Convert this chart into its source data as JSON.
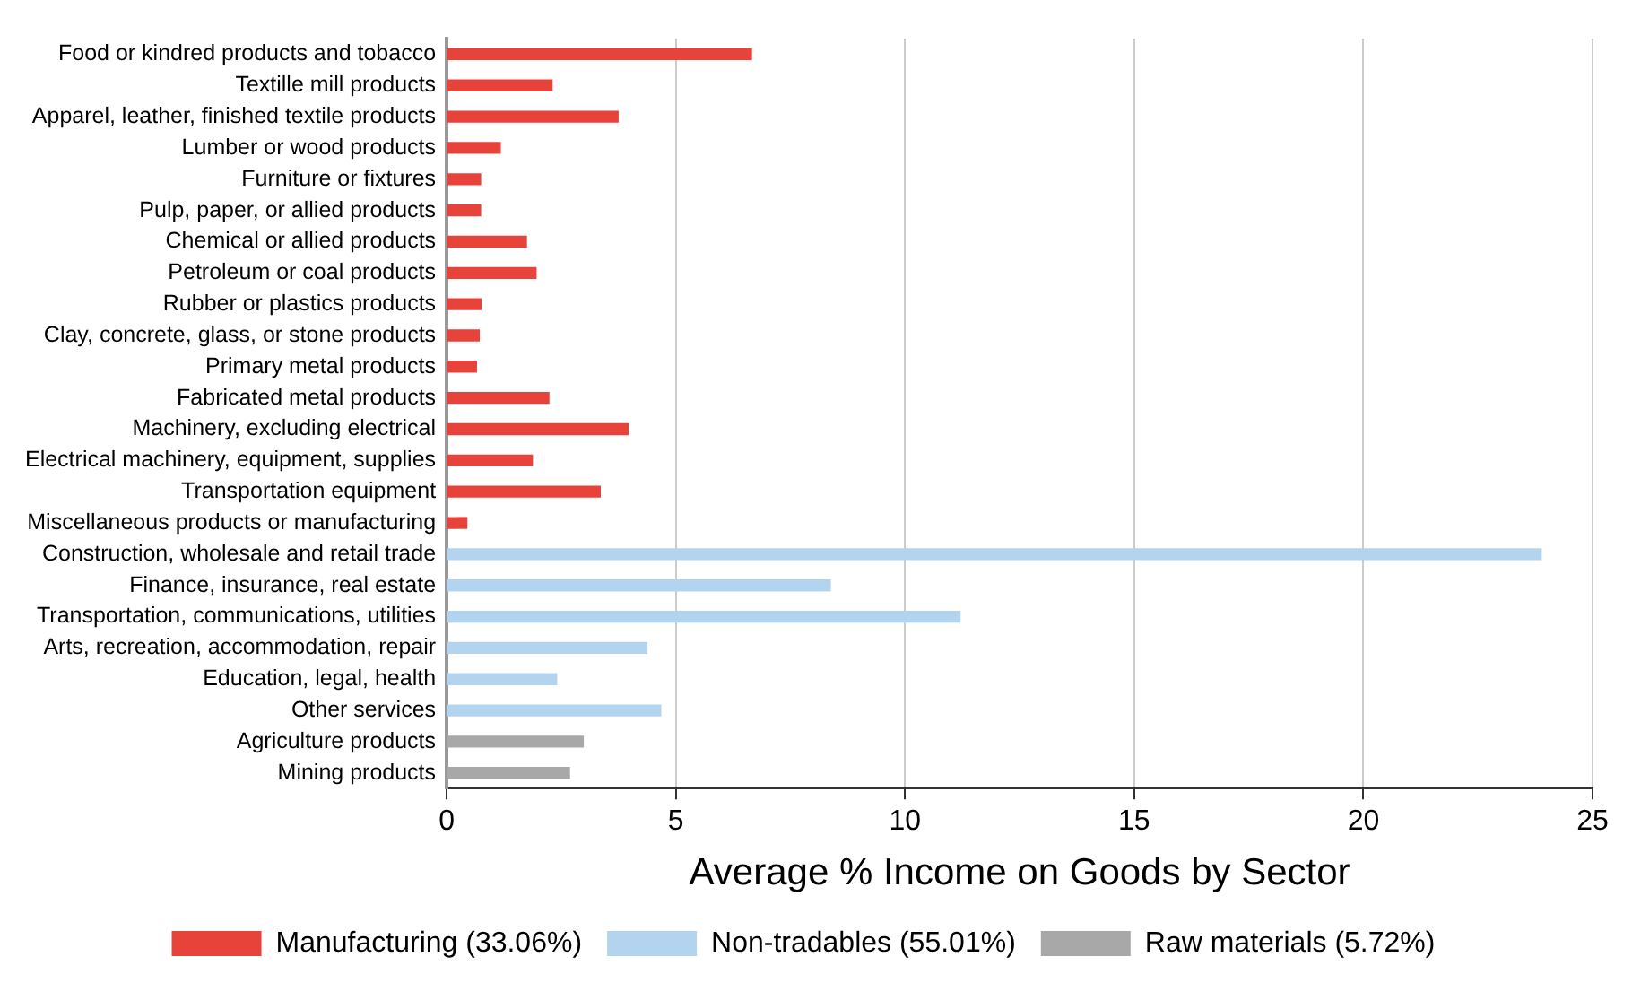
{
  "chart_data": {
    "type": "bar",
    "orientation": "horizontal",
    "xlabel": "Average % Income on Goods by Sector",
    "categories": [
      "Food or kindred products and tobacco",
      "Textille mill products",
      "Apparel, leather, finished textile products",
      "Lumber or wood products",
      "Furniture or fixtures",
      "Pulp, paper, or allied products",
      "Chemical or allied products",
      "Petroleum or coal products",
      "Rubber or plastics products",
      "Clay, concrete, glass, or stone products",
      "Primary metal products",
      "Fabricated metal products",
      "Machinery, excluding electrical",
      "Electrical machinery, equipment, supplies",
      "Transportation equipment",
      "Miscellaneous products or manufacturing",
      "Construction, wholesale and retail trade",
      "Finance, insurance, real estate",
      "Transportation, communications, utilities",
      "Arts, recreation, accommodation, repair",
      "Education, legal, health",
      "Other services",
      "Agriculture products",
      "Mining products"
    ],
    "series": [
      {
        "name": "Manufacturing (33.06%)",
        "color": "#e8433a",
        "values": [
          6.65,
          2.3,
          3.74,
          1.17,
          0.74,
          0.74,
          1.74,
          1.95,
          0.75,
          0.71,
          0.65,
          2.23,
          3.96,
          1.87,
          3.35,
          0.44,
          null,
          null,
          null,
          null,
          null,
          null,
          null,
          null
        ]
      },
      {
        "name": "Non-tradables (55.01%)",
        "color": "#b3d4ef",
        "values": [
          null,
          null,
          null,
          null,
          null,
          null,
          null,
          null,
          null,
          null,
          null,
          null,
          null,
          null,
          null,
          null,
          23.88,
          8.37,
          11.2,
          4.37,
          2.4,
          4.67,
          null,
          null
        ]
      },
      {
        "name": "Raw materials (5.72%)",
        "color": "#a8a8a8",
        "values": [
          null,
          null,
          null,
          null,
          null,
          null,
          null,
          null,
          null,
          null,
          null,
          null,
          null,
          null,
          null,
          null,
          null,
          null,
          null,
          null,
          null,
          null,
          2.98,
          2.68
        ]
      }
    ],
    "xlim": [
      0,
      25
    ],
    "xticks": [
      0,
      5,
      10,
      15,
      20,
      25
    ],
    "grid": "x",
    "legend": "bottom"
  }
}
